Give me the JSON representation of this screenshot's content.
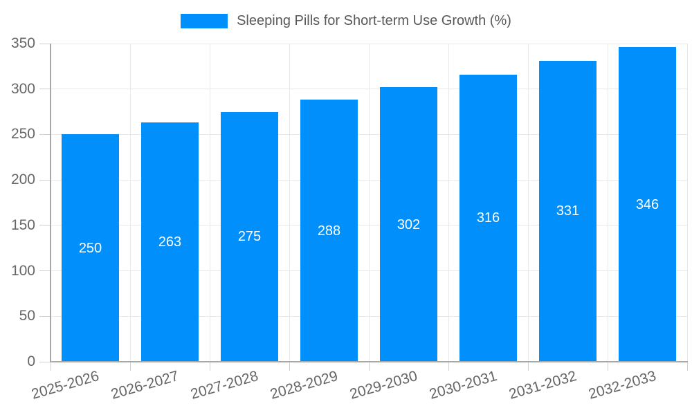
{
  "legend": {
    "label": "Sleeping Pills for Short-term Use Growth (%)"
  },
  "chart_data": {
    "type": "bar",
    "title": "Sleeping Pills for Short-term Use Growth (%)",
    "categories": [
      "2025-2026",
      "2026-2027",
      "2027-2028",
      "2028-2029",
      "2029-2030",
      "2030-2031",
      "2031-2032",
      "2032-2033"
    ],
    "values": [
      250,
      263,
      275,
      288,
      302,
      316,
      331,
      346
    ],
    "value_labels": [
      "250",
      "263",
      "275",
      "288",
      "302",
      "316",
      "331",
      "346"
    ],
    "xlabel": "",
    "ylabel": "",
    "ylim": [
      0,
      350
    ],
    "yticks": [
      0,
      50,
      100,
      150,
      200,
      250,
      300,
      350
    ],
    "grid": true,
    "legend_position": "top",
    "colors": {
      "bar_fill": "#008FFB",
      "value_label": "#ffffff",
      "grid_line": "#e8e8e8",
      "tick_mark": "#cfcfcf",
      "axis_border": "#a8a8a8",
      "tick_label": "#666666",
      "legend_text": "#595959",
      "background": "#ffffff"
    }
  }
}
